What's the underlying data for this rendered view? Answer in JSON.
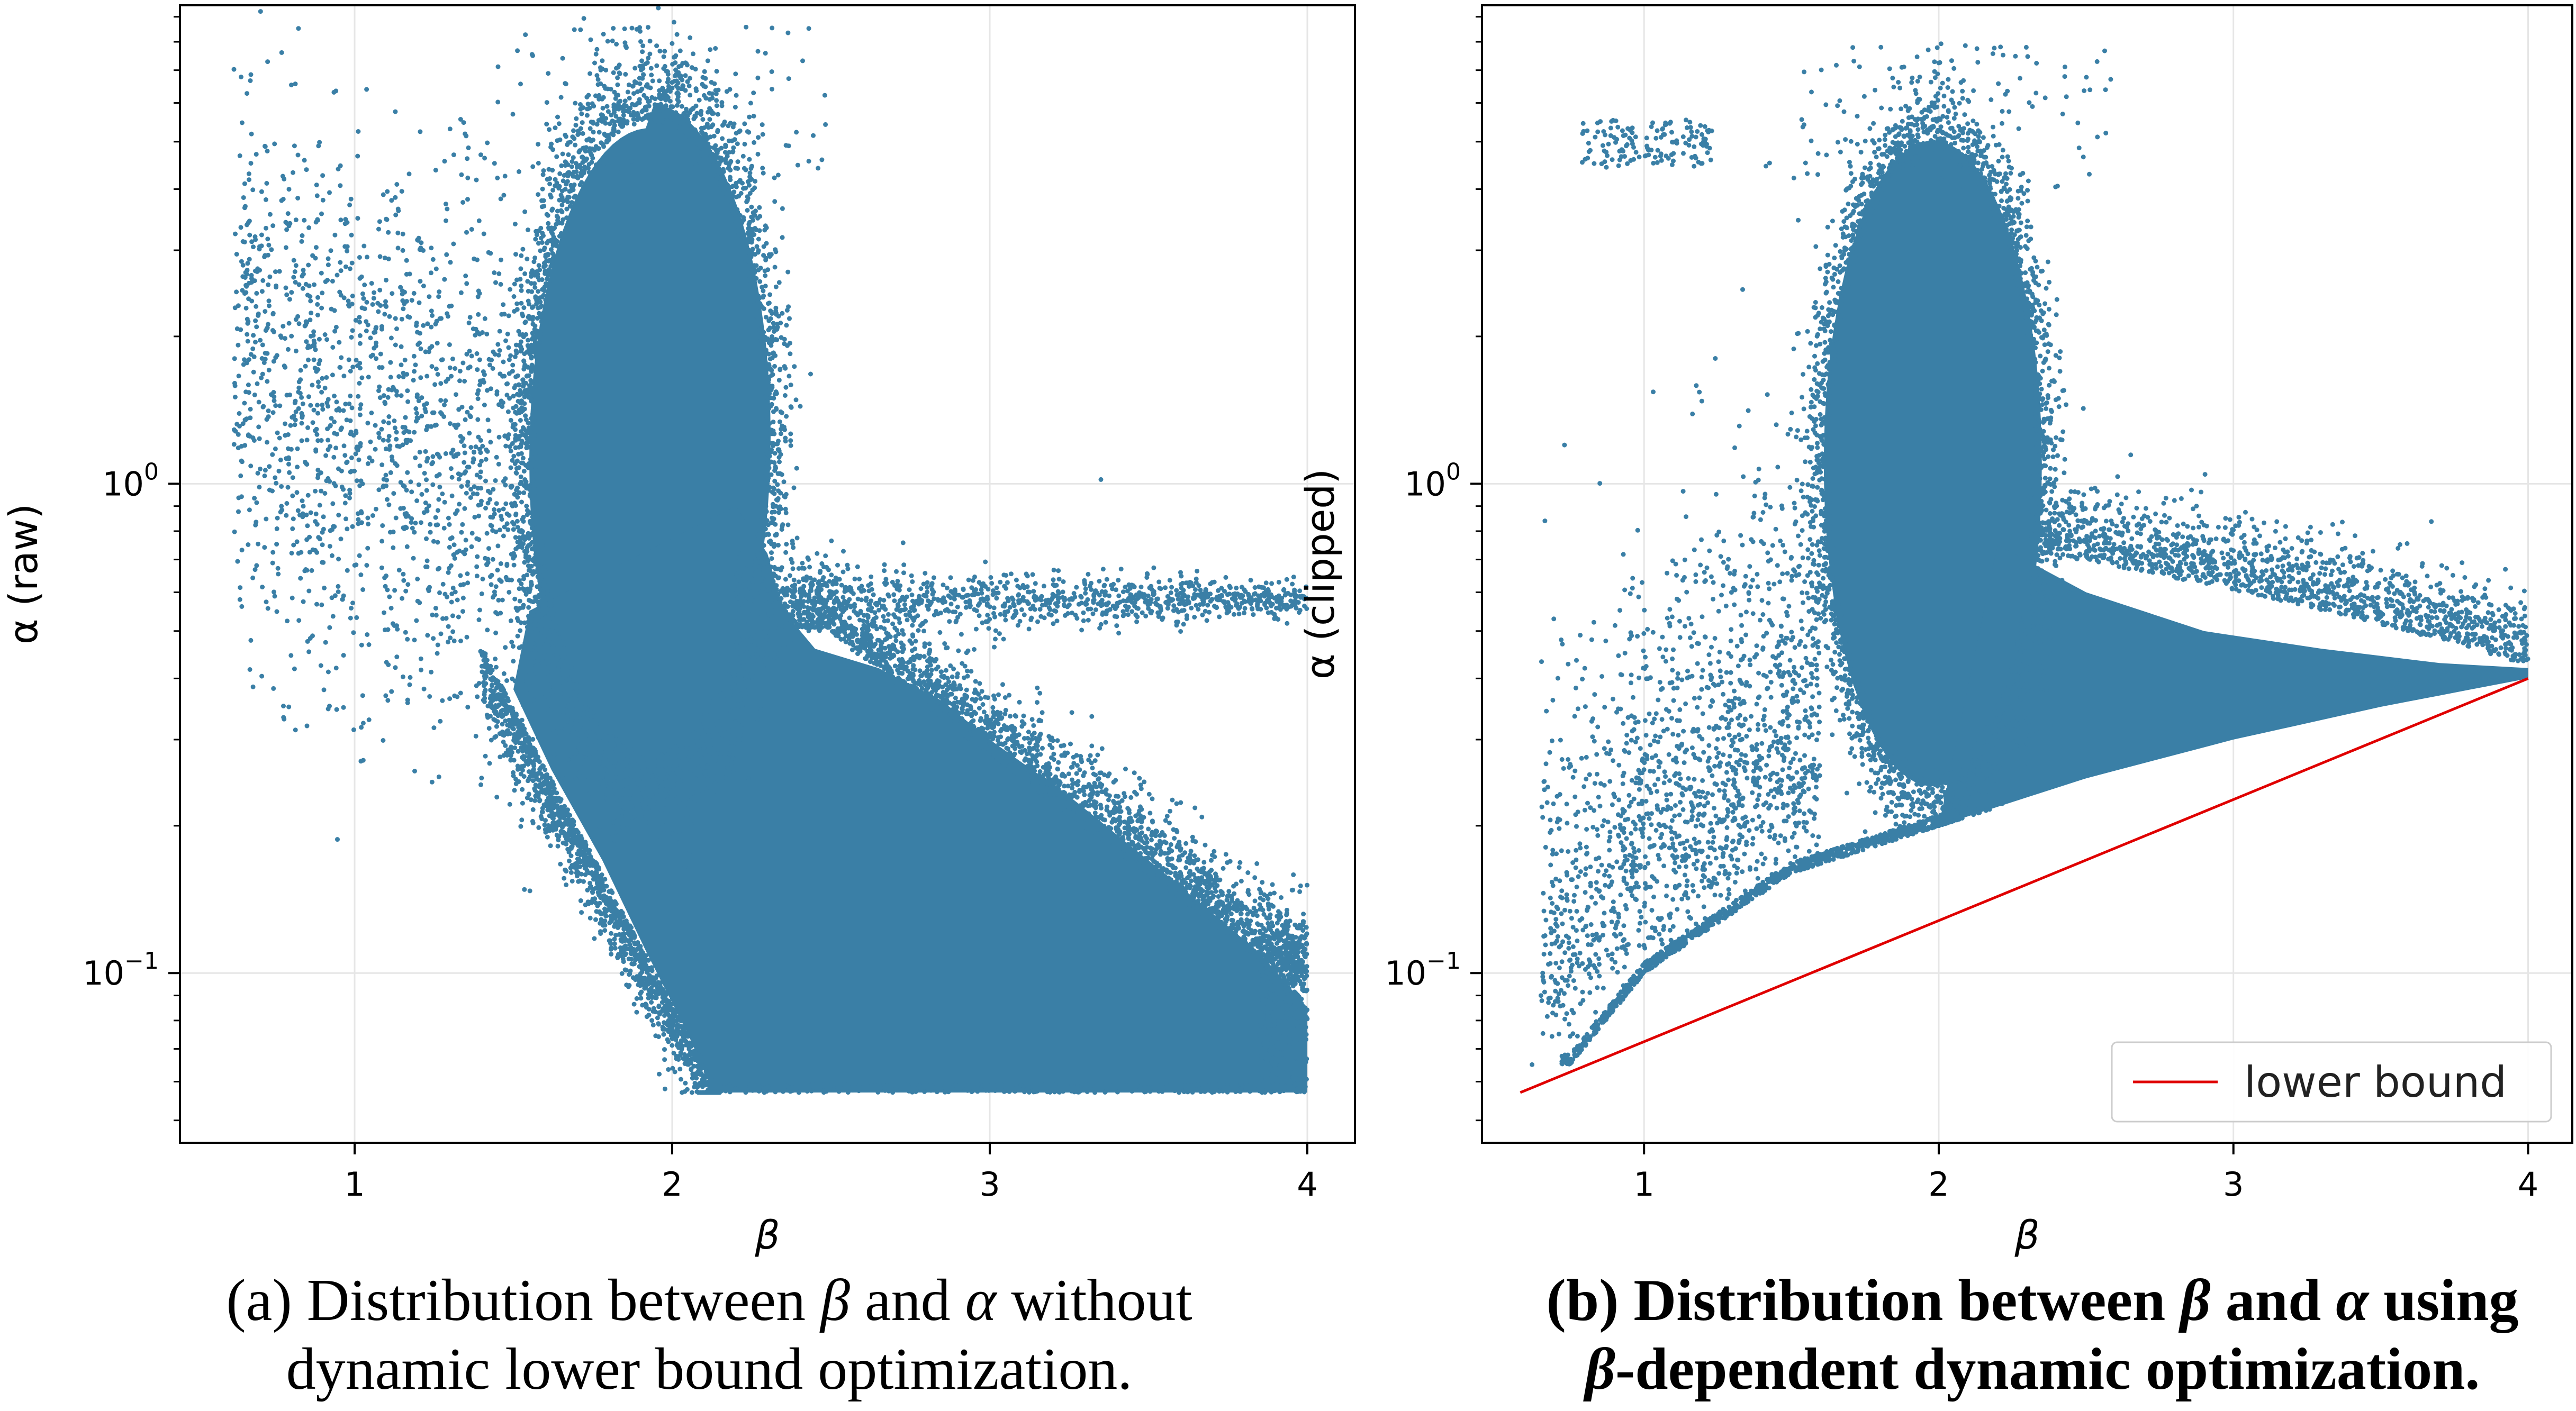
{
  "colors": {
    "points": "#3a7fa6",
    "lower_bound": "#e00000",
    "grid": "#e6e6e6",
    "frame": "#000000"
  },
  "chart_data": [
    {
      "type": "scatter",
      "xlabel": "β",
      "ylabel": "α (raw)",
      "y_scale": "log",
      "xlim": [
        0.45,
        4.15
      ],
      "ylim": [
        0.045,
        9.5
      ],
      "x_ticks": [
        1,
        2,
        3,
        4
      ],
      "x_tick_labels": [
        "1",
        "2",
        "3",
        "4"
      ],
      "y_ticks": [
        0.1,
        1
      ],
      "y_tick_labels": [
        {
          "base": "10",
          "exp": "−1"
        },
        {
          "base": "10",
          "exp": "0"
        }
      ],
      "grid": true,
      "regions": [
        {
          "x": [
            0.6,
            1.5
          ],
          "y": [
            0.35,
            4.5
          ],
          "density": "sparse",
          "note": "upper-left cloud"
        },
        {
          "x": [
            1.5,
            2.4
          ],
          "y": [
            0.3,
            6.5
          ],
          "density": "dense",
          "note": "main blob centered near β≈1.9, α≈1.5"
        },
        {
          "x": [
            1.6,
            4.0
          ],
          "y": [
            0.057,
            0.45
          ],
          "density": "dense",
          "note": "descending band to α floor ≈ 0.057"
        },
        {
          "x": [
            2.4,
            4.0
          ],
          "y": [
            0.5,
            0.7
          ],
          "density": "sparse",
          "note": "horizontal arm near α≈0.6"
        }
      ],
      "caption": {
        "line1": {
          "pre": "(a) Distribution between ",
          "sym1": "β",
          "mid": " and ",
          "sym2": "α",
          "post": " without"
        },
        "line2": "dynamic lower bound optimization."
      }
    },
    {
      "type": "scatter",
      "xlabel": "β",
      "ylabel": "α (clipped)",
      "y_scale": "log",
      "xlim": [
        0.45,
        4.15
      ],
      "ylim": [
        0.045,
        9.5
      ],
      "x_ticks": [
        1,
        2,
        3,
        4
      ],
      "x_tick_labels": [
        "1",
        "2",
        "3",
        "4"
      ],
      "y_ticks": [
        0.1,
        1
      ],
      "y_tick_labels": [
        {
          "base": "10",
          "exp": "−1"
        },
        {
          "base": "10",
          "exp": "0"
        }
      ],
      "grid": true,
      "series": [
        {
          "name": "lower bound",
          "type": "line",
          "x": [
            0.58,
            4.0
          ],
          "y": [
            0.057,
            0.4
          ]
        }
      ],
      "clip_curve": {
        "x": [
          0.75,
          1.0,
          1.5,
          2.0,
          2.5,
          3.0,
          3.5,
          4.0
        ],
        "y": [
          0.065,
          0.1,
          0.16,
          0.2,
          0.25,
          0.3,
          0.35,
          0.4
        ]
      },
      "regions": [
        {
          "x": [
            0.6,
            1.6
          ],
          "y": [
            0.07,
            4.5
          ],
          "density": "sparse",
          "note": "scattered left region"
        },
        {
          "x": [
            1.5,
            2.5
          ],
          "y": [
            0.2,
            5.5
          ],
          "density": "dense",
          "note": "main blob above clip curve"
        },
        {
          "x": [
            2.3,
            4.0
          ],
          "y": [
            0.3,
            0.6
          ],
          "density": "dense",
          "note": "tail converging to α≈0.4 at β=4"
        }
      ],
      "legend": {
        "position": "lower-right",
        "entries": [
          "lower bound"
        ]
      },
      "caption": {
        "line1": {
          "pre": "(b) Distribution between ",
          "sym1": "β",
          "mid": " and ",
          "sym2": "α",
          "post": " using"
        },
        "line2_sym": "β",
        "line2": "-dependent dynamic optimization."
      }
    }
  ]
}
